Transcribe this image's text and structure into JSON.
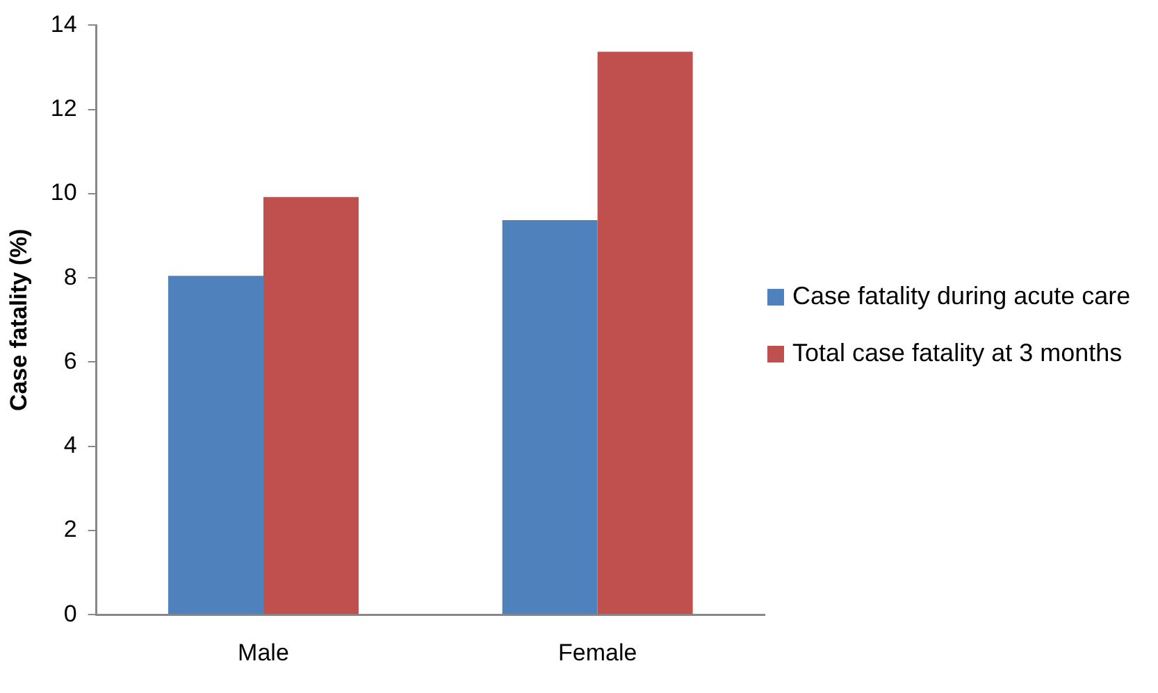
{
  "chart_data": {
    "type": "bar",
    "ylabel": "Case fatality (%)",
    "categories": [
      "Male",
      "Female"
    ],
    "series": [
      {
        "name": "Case fatality during acute care",
        "color": "#4f81bd",
        "values": [
          8.05,
          9.37
        ]
      },
      {
        "name": "Total case fatality at 3 months",
        "color": "#c0504d",
        "values": [
          9.92,
          13.37
        ]
      }
    ],
    "ylim": [
      0,
      14
    ],
    "yticks": [
      0,
      2,
      4,
      6,
      8,
      10,
      12,
      14
    ],
    "grid": false,
    "legend": "right"
  }
}
